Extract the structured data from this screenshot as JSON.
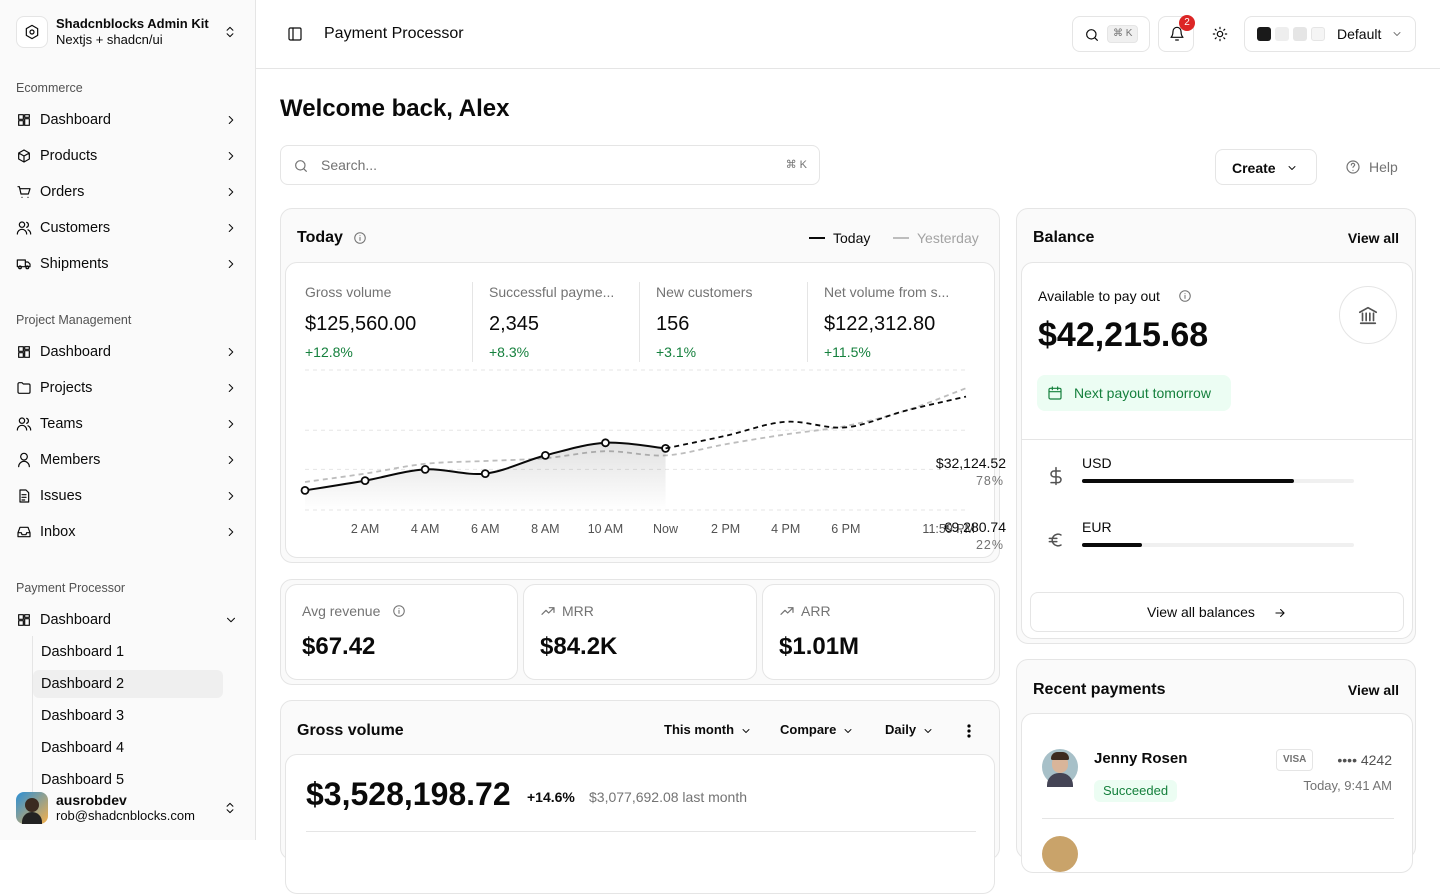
{
  "sidebar": {
    "brand": {
      "title": "Shadcnblocks Admin Kit",
      "subtitle": "Nextjs + shadcn/ui"
    },
    "groups": [
      {
        "label": "Ecommerce",
        "items": [
          "Dashboard",
          "Products",
          "Orders",
          "Customers",
          "Shipments"
        ]
      },
      {
        "label": "Project Management",
        "items": [
          "Dashboard",
          "Projects",
          "Teams",
          "Members",
          "Issues",
          "Inbox"
        ]
      },
      {
        "label": "Payment Processor",
        "items": [
          "Dashboard"
        ],
        "subitems": [
          "Dashboard 1",
          "Dashboard 2",
          "Dashboard 3",
          "Dashboard 4",
          "Dashboard 5"
        ]
      }
    ],
    "user": {
      "name": "ausrobdev",
      "email": "rob@shadcnblocks.com"
    }
  },
  "topbar": {
    "title": "Payment Processor",
    "shortcut": "⌘ K",
    "notifications": "2",
    "theme": "Default"
  },
  "welcome": "Welcome back, Alex",
  "search": {
    "placeholder": "Search...",
    "shortcut": "⌘ K"
  },
  "actions": {
    "create": "Create",
    "help": "Help"
  },
  "today": {
    "title": "Today",
    "stats": [
      {
        "label": "Gross volume",
        "value": "$125,560.00",
        "change": "+12.8%"
      },
      {
        "label": "Successful payme...",
        "value": "2,345",
        "change": "+8.3%"
      },
      {
        "label": "New customers",
        "value": "156",
        "change": "+3.1%"
      },
      {
        "label": "Net volume from s...",
        "value": "$122,312.80",
        "change": "+11.5%"
      }
    ],
    "chart": {
      "type": "line",
      "categories": [
        null,
        "2 AM",
        "4 AM",
        "6 AM",
        "8 AM",
        "10 AM",
        "Now",
        "2 PM",
        "4 PM",
        "6 PM",
        null,
        "11:59 PM"
      ],
      "ylim": [
        0,
        100
      ],
      "yticks": [
        0,
        29,
        57,
        100
      ],
      "grid": true,
      "series": [
        {
          "name": "Today",
          "color": "#0a0a0a",
          "style": "solid",
          "markers": true,
          "area": true,
          "values": [
            14,
            21,
            29,
            26,
            39,
            48,
            44,
            null,
            null,
            null,
            null,
            null
          ]
        },
        {
          "color": "#0a0a0a",
          "style": "dashed",
          "values": [
            null,
            null,
            null,
            null,
            null,
            null,
            44,
            53,
            63,
            59,
            71,
            81
          ]
        },
        {
          "name": "Yesterday",
          "color": "#bdbdbd",
          "style": "dashed",
          "values": [
            20,
            26,
            33,
            35,
            37,
            42,
            39,
            47,
            54,
            60,
            71,
            87
          ]
        }
      ]
    }
  },
  "metrics": [
    {
      "label": "Avg revenue",
      "value": "$67.42"
    },
    {
      "label": "MRR",
      "value": "$84.2K"
    },
    {
      "label": "ARR",
      "value": "$1.01M"
    }
  ],
  "gross_volume": {
    "title": "Gross volume",
    "filters": [
      "This month",
      "Compare",
      "Daily"
    ],
    "amount": "$3,528,198.72",
    "change": "+14.6%",
    "previous": "$3,077,692.08 last month"
  },
  "balance": {
    "title": "Balance",
    "view_all": "View all",
    "available_label": "Available to pay out",
    "available": "$42,215.68",
    "payout": "Next payout tomorrow",
    "currencies": [
      {
        "code": "USD",
        "amount": "$32,124.52",
        "percent": 78,
        "percent_label": "78%"
      },
      {
        "code": "EUR",
        "amount": "€9,280.74",
        "percent": 22,
        "percent_label": "22%"
      }
    ],
    "button": "View all balances"
  },
  "recent_payments": {
    "title": "Recent payments",
    "view_all": "View all",
    "payments": [
      {
        "name": "Jenny Rosen",
        "status": "Succeeded",
        "brand": "VISA",
        "card": "•••• 4242",
        "time": "Today, 9:41 AM"
      }
    ]
  }
}
